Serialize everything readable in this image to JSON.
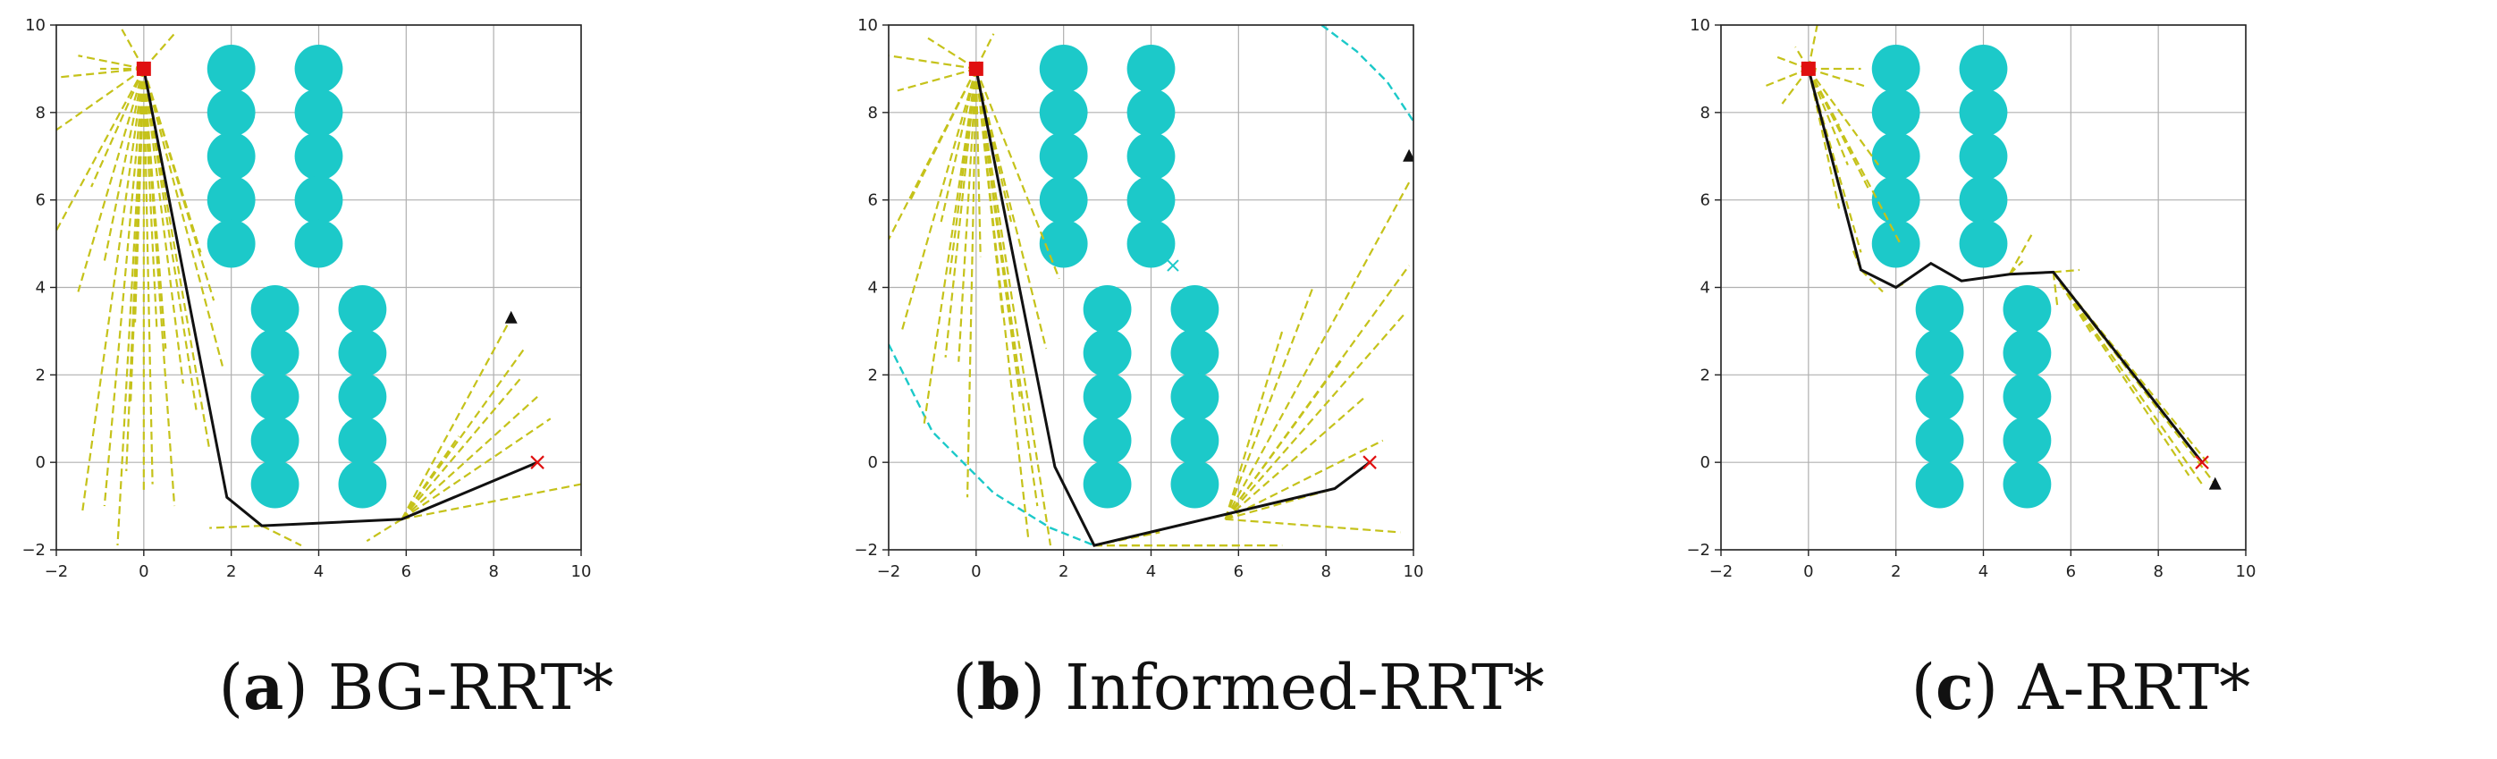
{
  "chart_data": [
    {
      "type": "scatter",
      "caption_letter": "a",
      "caption_text": "BG-RRT*",
      "xlim": [
        -2,
        10
      ],
      "ylim": [
        -2,
        10
      ],
      "xticks": [
        "-2",
        "0",
        "2",
        "4",
        "6",
        "8",
        "10"
      ],
      "yticks": [
        "-2",
        "0",
        "2",
        "4",
        "6",
        "8",
        "10"
      ],
      "grid": true,
      "start": [
        0,
        9
      ],
      "goal": [
        9,
        0
      ],
      "triangle": [
        8.4,
        3.3
      ],
      "obstacles": [
        [
          2,
          9
        ],
        [
          2,
          8
        ],
        [
          2,
          7
        ],
        [
          2,
          6
        ],
        [
          2,
          5
        ],
        [
          4,
          9
        ],
        [
          4,
          8
        ],
        [
          4,
          7
        ],
        [
          4,
          6
        ],
        [
          4,
          5
        ],
        [
          3,
          3.5
        ],
        [
          3,
          2.5
        ],
        [
          3,
          1.5
        ],
        [
          3,
          0.5
        ],
        [
          3,
          -0.5
        ],
        [
          5,
          3.5
        ],
        [
          5,
          2.5
        ],
        [
          5,
          1.5
        ],
        [
          5,
          0.5
        ],
        [
          5,
          -0.5
        ]
      ],
      "obstacle_radius": 0.55,
      "path": [
        [
          0,
          9
        ],
        [
          1.9,
          -0.8
        ],
        [
          2.7,
          -1.45
        ],
        [
          5.9,
          -1.3
        ],
        [
          9,
          0
        ]
      ],
      "tree_roots": [
        [
          0,
          9
        ],
        [
          0,
          9
        ],
        [
          0,
          9
        ],
        [
          0,
          9
        ],
        [
          0,
          9
        ],
        [
          0,
          9
        ],
        [
          0,
          9
        ],
        [
          0,
          9
        ],
        [
          0,
          9
        ],
        [
          0,
          9
        ],
        [
          0,
          9
        ],
        [
          0,
          9
        ],
        [
          0,
          9
        ],
        [
          0,
          9
        ],
        [
          0,
          9
        ],
        [
          0,
          9
        ],
        [
          0,
          9
        ],
        [
          0,
          9
        ],
        [
          0,
          9
        ],
        [
          0,
          9
        ],
        [
          0,
          9
        ],
        [
          0,
          9
        ],
        [
          0,
          9
        ],
        [
          0,
          9
        ],
        [
          0,
          9
        ],
        [
          0,
          9
        ],
        [
          0,
          9
        ],
        [
          5.9,
          -1.3
        ],
        [
          5.9,
          -1.3
        ],
        [
          5.9,
          -1.3
        ],
        [
          5.9,
          -1.3
        ],
        [
          5.9,
          -1.3
        ],
        [
          5.9,
          -1.3
        ],
        [
          5.9,
          -1.3
        ],
        [
          5.9,
          -1.3
        ],
        [
          2.7,
          -1.45
        ],
        [
          2.7,
          -1.45
        ]
      ],
      "tree_ends": [
        [
          -1.5,
          9.3
        ],
        [
          -2,
          8.8
        ],
        [
          -2,
          7.6
        ],
        [
          -2,
          5.3
        ],
        [
          -1.5,
          3.9
        ],
        [
          -1.4,
          -1.1
        ],
        [
          -0.9,
          -1.0
        ],
        [
          -0.6,
          -1.9
        ],
        [
          -0.2,
          3.2
        ],
        [
          0,
          -0.7
        ],
        [
          0.3,
          3.0
        ],
        [
          0.7,
          -1.0
        ],
        [
          1.2,
          1.2
        ],
        [
          1.6,
          3.7
        ],
        [
          1.8,
          2.2
        ],
        [
          -0.5,
          9.9
        ],
        [
          0.7,
          9.8
        ],
        [
          -1.0,
          9.0
        ],
        [
          -0.3,
          1.4
        ],
        [
          0.5,
          2.6
        ],
        [
          1.3,
          4.8
        ],
        [
          -1.2,
          6.3
        ],
        [
          -0.9,
          4.6
        ],
        [
          -0.4,
          -0.2
        ],
        [
          0.2,
          -0.5
        ],
        [
          0.9,
          1.8
        ],
        [
          1.5,
          0.3
        ],
        [
          8.4,
          3.3
        ],
        [
          8.7,
          2.6
        ],
        [
          9.0,
          1.5
        ],
        [
          9.3,
          1.0
        ],
        [
          10,
          -0.5
        ],
        [
          8.6,
          1.9
        ],
        [
          7.2,
          0.6
        ],
        [
          5.1,
          -1.8
        ],
        [
          1.5,
          -1.5
        ],
        [
          3.6,
          -1.9
        ]
      ]
    },
    {
      "type": "scatter",
      "caption_letter": "b",
      "caption_text": "Informed-RRT*",
      "xlim": [
        -2,
        10
      ],
      "ylim": [
        -2,
        10
      ],
      "xticks": [
        "-2",
        "0",
        "2",
        "4",
        "6",
        "8",
        "10"
      ],
      "yticks": [
        "-2",
        "0",
        "2",
        "4",
        "6",
        "8",
        "10"
      ],
      "grid": true,
      "start": [
        0,
        9
      ],
      "goal": [
        9,
        0
      ],
      "triangle": [
        9.9,
        7.0
      ],
      "cyan_x": [
        4.5,
        4.5
      ],
      "ellipse_arcs": [
        [
          [
            -2,
            2.7
          ],
          [
            -1.0,
            0.7
          ],
          [
            0.4,
            -0.7
          ],
          [
            1.7,
            -1.5
          ],
          [
            2.7,
            -1.9
          ]
        ],
        [
          [
            7.9,
            10
          ],
          [
            8.7,
            9.4
          ],
          [
            9.4,
            8.7
          ],
          [
            10,
            7.8
          ]
        ]
      ],
      "obstacles": [
        [
          2,
          9
        ],
        [
          2,
          8
        ],
        [
          2,
          7
        ],
        [
          2,
          6
        ],
        [
          2,
          5
        ],
        [
          4,
          9
        ],
        [
          4,
          8
        ],
        [
          4,
          7
        ],
        [
          4,
          6
        ],
        [
          4,
          5
        ],
        [
          3,
          3.5
        ],
        [
          3,
          2.5
        ],
        [
          3,
          1.5
        ],
        [
          3,
          0.5
        ],
        [
          3,
          -0.5
        ],
        [
          5,
          3.5
        ],
        [
          5,
          2.5
        ],
        [
          5,
          1.5
        ],
        [
          5,
          0.5
        ],
        [
          5,
          -0.5
        ]
      ],
      "obstacle_radius": 0.55,
      "path": [
        [
          0,
          9
        ],
        [
          1.8,
          -0.1
        ],
        [
          2.7,
          -1.9
        ],
        [
          8.2,
          -0.6
        ],
        [
          9,
          0
        ]
      ],
      "tree_roots": [
        [
          0,
          9
        ],
        [
          0,
          9
        ],
        [
          0,
          9
        ],
        [
          0,
          9
        ],
        [
          0,
          9
        ],
        [
          0,
          9
        ],
        [
          0,
          9
        ],
        [
          0,
          9
        ],
        [
          0,
          9
        ],
        [
          0,
          9
        ],
        [
          0,
          9
        ],
        [
          0,
          9
        ],
        [
          0,
          9
        ],
        [
          0,
          9
        ],
        [
          0,
          9
        ],
        [
          0,
          9
        ],
        [
          0,
          9
        ],
        [
          0,
          9
        ],
        [
          0,
          9
        ],
        [
          0,
          9
        ],
        [
          0,
          9
        ],
        [
          0,
          9
        ],
        [
          5.7,
          -1.3
        ],
        [
          5.7,
          -1.3
        ],
        [
          5.7,
          -1.3
        ],
        [
          5.7,
          -1.3
        ],
        [
          5.7,
          -1.3
        ],
        [
          5.7,
          -1.3
        ],
        [
          5.7,
          -1.3
        ],
        [
          5.7,
          -1.3
        ],
        [
          5.7,
          -1.3
        ],
        [
          5.7,
          -1.3
        ],
        [
          2.7,
          -1.9
        ],
        [
          2.7,
          -1.9
        ],
        [
          2.7,
          -1.9
        ]
      ],
      "tree_ends": [
        [
          -1.8,
          8.5
        ],
        [
          -2,
          9.3
        ],
        [
          -1.1,
          9.7
        ],
        [
          -2,
          5.1
        ],
        [
          -1.7,
          3.0
        ],
        [
          -1.2,
          0.8
        ],
        [
          -0.6,
          4.3
        ],
        [
          -0.4,
          2.3
        ],
        [
          -0.2,
          -0.8
        ],
        [
          0.1,
          4.7
        ],
        [
          0.6,
          3.4
        ],
        [
          1.0,
          1.5
        ],
        [
          1.4,
          -1.0
        ],
        [
          1.6,
          2.6
        ],
        [
          1.9,
          4.2
        ],
        [
          -1.5,
          6.0
        ],
        [
          -0.8,
          5.5
        ],
        [
          0.4,
          9.8
        ],
        [
          0.8,
          5.5
        ],
        [
          1.2,
          -1.8
        ],
        [
          1.7,
          -1.9
        ],
        [
          -0.7,
          2.4
        ],
        [
          9.9,
          6.4
        ],
        [
          9.9,
          4.5
        ],
        [
          9.8,
          3.4
        ],
        [
          7.7,
          4.0
        ],
        [
          8.4,
          2.4
        ],
        [
          8.9,
          1.5
        ],
        [
          9.3,
          0.5
        ],
        [
          8.2,
          -0.6
        ],
        [
          7.0,
          3.0
        ],
        [
          9.7,
          -1.6
        ],
        [
          7.0,
          -1.9
        ],
        [
          4.2,
          -1.6
        ],
        [
          6.0,
          -1.9
        ]
      ]
    },
    {
      "type": "scatter",
      "caption_letter": "c",
      "caption_text": "A-RRT*",
      "xlim": [
        -2,
        10
      ],
      "ylim": [
        -2,
        10
      ],
      "xticks": [
        "-2",
        "0",
        "2",
        "4",
        "6",
        "8",
        "10"
      ],
      "yticks": [
        "-2",
        "0",
        "2",
        "4",
        "6",
        "8",
        "10"
      ],
      "grid": true,
      "start": [
        0,
        9
      ],
      "goal": [
        9,
        0
      ],
      "triangle": [
        9.3,
        -0.5
      ],
      "obstacles": [
        [
          2,
          9
        ],
        [
          2,
          8
        ],
        [
          2,
          7
        ],
        [
          2,
          6
        ],
        [
          2,
          5
        ],
        [
          4,
          9
        ],
        [
          4,
          8
        ],
        [
          4,
          7
        ],
        [
          4,
          6
        ],
        [
          4,
          5
        ],
        [
          3,
          3.5
        ],
        [
          3,
          2.5
        ],
        [
          3,
          1.5
        ],
        [
          3,
          0.5
        ],
        [
          3,
          -0.5
        ],
        [
          5,
          3.5
        ],
        [
          5,
          2.5
        ],
        [
          5,
          1.5
        ],
        [
          5,
          0.5
        ],
        [
          5,
          -0.5
        ]
      ],
      "obstacle_radius": 0.55,
      "path": [
        [
          0,
          9
        ],
        [
          1.2,
          4.4
        ],
        [
          2.0,
          4.0
        ],
        [
          2.8,
          4.55
        ],
        [
          3.5,
          4.15
        ],
        [
          4.6,
          4.3
        ],
        [
          5.6,
          4.35
        ],
        [
          9,
          0
        ]
      ],
      "tree_roots": [
        [
          0,
          9
        ],
        [
          0,
          9
        ],
        [
          0,
          9
        ],
        [
          0,
          9
        ],
        [
          0,
          9
        ],
        [
          0,
          9
        ],
        [
          0,
          9
        ],
        [
          0,
          9
        ],
        [
          0,
          9
        ],
        [
          0,
          9
        ],
        [
          0,
          9
        ],
        [
          0,
          9
        ],
        [
          0,
          9
        ],
        [
          0,
          9
        ],
        [
          1.2,
          4.4
        ],
        [
          1.2,
          4.4
        ],
        [
          2.0,
          4.0
        ],
        [
          4.6,
          4.3
        ],
        [
          4.6,
          4.3
        ],
        [
          5.6,
          4.35
        ],
        [
          5.6,
          4.35
        ],
        [
          5.6,
          4.35
        ],
        [
          5.6,
          4.35
        ],
        [
          5.6,
          4.35
        ],
        [
          5.6,
          4.35
        ],
        [
          5.6,
          4.35
        ]
      ],
      "tree_ends": [
        [
          -0.8,
          9.3
        ],
        [
          -1.0,
          8.6
        ],
        [
          -0.6,
          8.2
        ],
        [
          0.2,
          10
        ],
        [
          1.3,
          8.6
        ],
        [
          1.6,
          6.8
        ],
        [
          0.7,
          5.8
        ],
        [
          1.2,
          4.8
        ],
        [
          1.4,
          6.2
        ],
        [
          2.1,
          5.0
        ],
        [
          0.9,
          6.8
        ],
        [
          -0.3,
          9.5
        ],
        [
          1.2,
          9.0
        ],
        [
          0.7,
          7.7
        ],
        [
          1.7,
          3.9
        ],
        [
          1.0,
          4.9
        ],
        [
          2.2,
          4.1
        ],
        [
          5.1,
          5.2
        ],
        [
          4.9,
          4.6
        ],
        [
          6.2,
          4.4
        ],
        [
          9.0,
          -0.5
        ],
        [
          9.2,
          -0.1
        ],
        [
          9.3,
          -0.5
        ],
        [
          8.7,
          -0.3
        ],
        [
          6.5,
          2.9
        ],
        [
          5.7,
          3.5
        ]
      ]
    }
  ]
}
